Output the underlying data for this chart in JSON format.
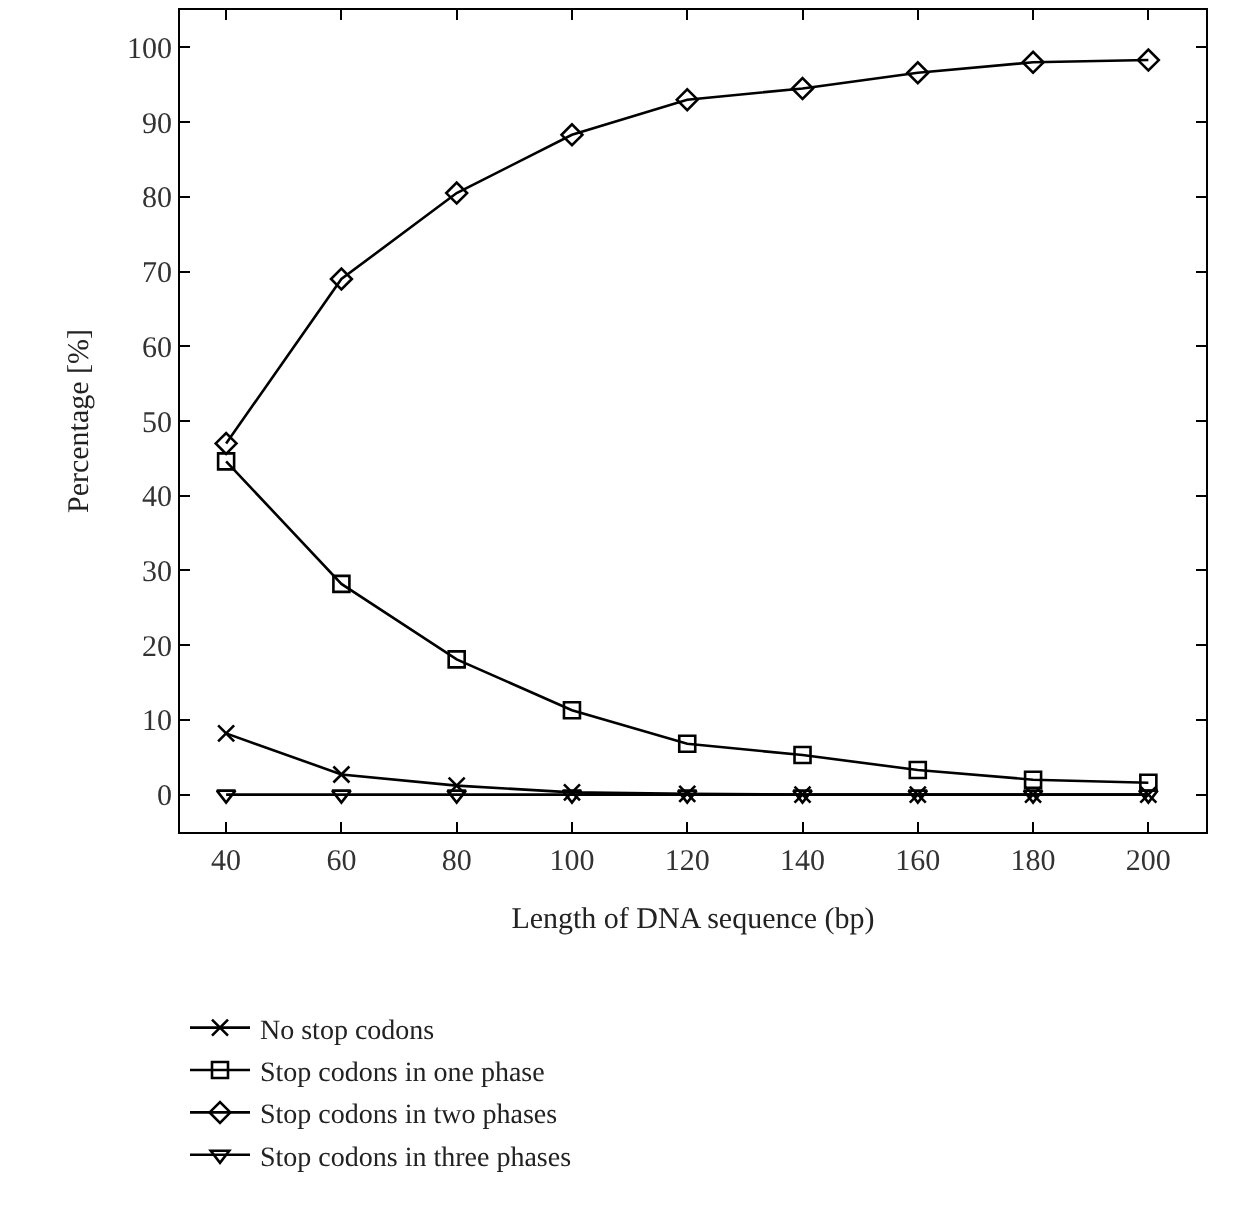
{
  "chart_data": {
    "type": "line",
    "xlabel": "Length of DNA sequence (bp)",
    "ylabel": "Percentage [%]",
    "x": [
      40,
      60,
      80,
      100,
      120,
      140,
      160,
      180,
      200
    ],
    "xlim": [
      32,
      210
    ],
    "xticks": [
      40,
      60,
      80,
      100,
      120,
      140,
      160,
      180,
      200
    ],
    "ylim": [
      -5,
      105
    ],
    "yticks": [
      0,
      10,
      20,
      30,
      40,
      50,
      60,
      70,
      80,
      90,
      100
    ],
    "legend": "bottom",
    "line_style": "solid",
    "series": [
      {
        "name": "No stop codons",
        "color": "#000000",
        "marker": "cross",
        "values": [
          8.2,
          2.7,
          1.2,
          0.3,
          0.1,
          0,
          0,
          0,
          0
        ]
      },
      {
        "name": "Stop codons in one phase",
        "color": "#000000",
        "marker": "square",
        "values": [
          44.6,
          28.2,
          18.1,
          11.3,
          6.8,
          5.3,
          3.3,
          2,
          1.6
        ]
      },
      {
        "name": "Stop codons in two phases",
        "color": "#000000",
        "marker": "diamond",
        "values": [
          47,
          69,
          80.5,
          88.3,
          93,
          94.5,
          96.6,
          98,
          98.3
        ]
      },
      {
        "name": "Stop codons in three phases",
        "color": "#000000",
        "marker": "triangle",
        "values": [
          0,
          0,
          0,
          0,
          0,
          0,
          0,
          0,
          0
        ]
      }
    ]
  }
}
